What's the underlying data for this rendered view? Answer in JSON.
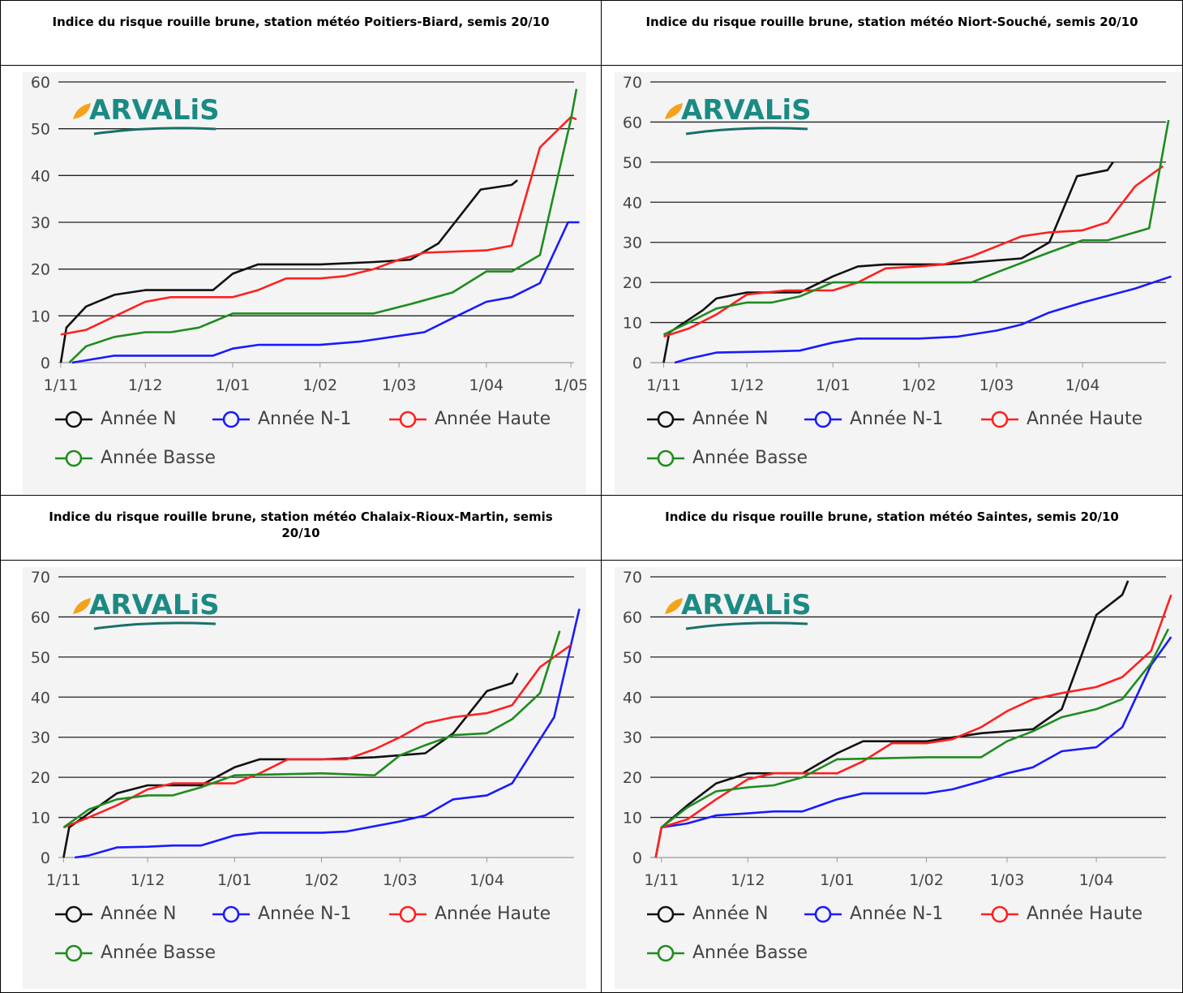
{
  "chart_data": [
    {
      "type": "line",
      "title": "Indice du risque rouille brune, station météo Poitiers-Biard, semis 20/10",
      "logo": "ARVALiS",
      "xlim": [
        "30/10",
        "5/05"
      ],
      "xticks": [
        "1/11",
        "1/12",
        "1/01",
        "1/02",
        "1/03",
        "1/04",
        "1/05"
      ],
      "ylim": [
        0,
        60
      ],
      "yticks": [
        0,
        10,
        20,
        30,
        40,
        50,
        60
      ],
      "grid": true,
      "series": [
        {
          "name": "Année N",
          "color": "#111111",
          "x": [
            "1/11",
            "3/11",
            "10/11",
            "20/11",
            "1/12",
            "25/12",
            "1/01",
            "10/01",
            "1/02",
            "20/02",
            "5/03",
            "15/03",
            "30/03",
            "10/04",
            "12/04"
          ],
          "values": [
            0,
            7.5,
            12,
            14.5,
            15.5,
            15.5,
            19,
            21,
            21,
            21.5,
            22,
            25.5,
            37,
            38,
            39
          ]
        },
        {
          "name": "Année N-1",
          "color": "#1a1aff",
          "x": [
            "5/11",
            "10/11",
            "20/11",
            "25/12",
            "1/01",
            "10/01",
            "1/02",
            "15/02",
            "10/03",
            "20/03",
            "1/04",
            "10/04",
            "20/04",
            "30/04",
            "4/05"
          ],
          "values": [
            0,
            0.5,
            1.5,
            1.5,
            3,
            3.8,
            3.8,
            4.5,
            6.5,
            9.5,
            13,
            14,
            17,
            30,
            30
          ]
        },
        {
          "name": "Année Haute",
          "color": "#ff2020",
          "x": [
            "1/11",
            "10/11",
            "1/12",
            "10/12",
            "1/01",
            "10/01",
            "20/01",
            "1/02",
            "10/02",
            "20/02",
            "1/03",
            "10/03",
            "1/04",
            "10/04",
            "20/04",
            "1/05",
            "3/05"
          ],
          "values": [
            6,
            7,
            13,
            14,
            14,
            15.5,
            18,
            18,
            18.5,
            20,
            22,
            23.5,
            24,
            25,
            46,
            52.5,
            52
          ]
        },
        {
          "name": "Année Basse",
          "color": "#1e8c1e",
          "x": [
            "4/11",
            "10/11",
            "20/11",
            "1/12",
            "10/12",
            "20/12",
            "1/01",
            "1/02",
            "20/02",
            "5/03",
            "20/03",
            "1/04",
            "10/04",
            "20/04",
            "1/05",
            "3/05"
          ],
          "values": [
            0,
            3.5,
            5.5,
            6.5,
            6.5,
            7.5,
            10.5,
            10.5,
            10.5,
            12.5,
            15,
            19.5,
            19.5,
            23,
            52,
            58.5
          ]
        }
      ]
    },
    {
      "type": "line",
      "title": "Indice du risque rouille brune, station météo Niort-Souché, semis 20/10",
      "logo": "ARVALiS",
      "xlim": [
        "26/10",
        "4/05"
      ],
      "xticks": [
        "1/11",
        "1/12",
        "1/01",
        "1/02",
        "1/03",
        "1/04"
      ],
      "ylim": [
        0,
        70
      ],
      "yticks": [
        0,
        10,
        20,
        30,
        40,
        50,
        60,
        70
      ],
      "grid": true,
      "series": [
        {
          "name": "Année N",
          "color": "#111111",
          "x": [
            "1/11",
            "3/11",
            "15/11",
            "20/11",
            "1/12",
            "20/12",
            "1/01",
            "10/01",
            "20/01",
            "1/02",
            "10/02",
            "20/02",
            "10/03",
            "20/03",
            "30/03",
            "10/04",
            "12/04"
          ],
          "values": [
            0,
            7.5,
            13,
            16,
            17.5,
            17.5,
            21.5,
            24,
            24.5,
            24.5,
            24.5,
            25,
            26,
            30,
            46.5,
            48,
            50
          ]
        },
        {
          "name": "Année N-1",
          "color": "#1a1aff",
          "x": [
            "5/11",
            "10/11",
            "20/11",
            "10/12",
            "20/12",
            "1/01",
            "10/01",
            "1/02",
            "15/02",
            "1/03",
            "10/03",
            "20/03",
            "1/04",
            "20/04",
            "3/05"
          ],
          "values": [
            0,
            1,
            2.5,
            2.8,
            3,
            5,
            6,
            6,
            6.5,
            8,
            9.5,
            12.5,
            15,
            18.5,
            21.5
          ]
        },
        {
          "name": "Année Haute",
          "color": "#ff2020",
          "x": [
            "1/11",
            "10/11",
            "20/11",
            "1/12",
            "15/12",
            "25/12",
            "1/01",
            "10/01",
            "20/01",
            "1/02",
            "10/02",
            "20/02",
            "1/03",
            "10/03",
            "20/03",
            "1/04",
            "10/04",
            "20/04",
            "30/04"
          ],
          "values": [
            6.5,
            8.5,
            12,
            17,
            18,
            18,
            18,
            20,
            23.5,
            24,
            24.5,
            26.5,
            29,
            31.5,
            32.5,
            33,
            35,
            44,
            49
          ]
        },
        {
          "name": "Année Basse",
          "color": "#1e8c1e",
          "x": [
            "1/11",
            "10/11",
            "20/11",
            "1/12",
            "10/12",
            "20/12",
            "1/01",
            "1/02",
            "20/02",
            "1/03",
            "20/03",
            "1/04",
            "10/04",
            "25/04",
            "2/05"
          ],
          "values": [
            7,
            10,
            13.5,
            15,
            15,
            16.5,
            20,
            20,
            20,
            22.5,
            27.5,
            30.5,
            30.5,
            33.5,
            60.5
          ]
        }
      ]
    },
    {
      "type": "line",
      "title": "Indice du risque rouille brune, station météo Chalaix-Rioux-Martin, semis 20/10",
      "logo": "ARVALiS",
      "xlim": [
        "29/10",
        "5/05"
      ],
      "xticks": [
        "1/11",
        "1/12",
        "1/01",
        "1/02",
        "1/03",
        "1/04"
      ],
      "ylim": [
        0,
        70
      ],
      "yticks": [
        0,
        10,
        20,
        30,
        40,
        50,
        60,
        70
      ],
      "grid": true,
      "series": [
        {
          "name": "Année N",
          "color": "#111111",
          "x": [
            "1/11",
            "3/11",
            "10/11",
            "20/11",
            "1/12",
            "20/12",
            "1/01",
            "10/01",
            "1/02",
            "20/02",
            "10/03",
            "20/03",
            "1/04",
            "10/04",
            "12/04"
          ],
          "values": [
            0,
            7.5,
            11,
            16,
            18,
            18,
            22.5,
            24.5,
            24.5,
            25,
            26,
            31,
            41.5,
            43.5,
            46
          ]
        },
        {
          "name": "Année N-1",
          "color": "#1a1aff",
          "x": [
            "5/11",
            "10/11",
            "20/11",
            "1/12",
            "10/12",
            "20/12",
            "1/01",
            "10/01",
            "1/02",
            "10/02",
            "1/03",
            "10/03",
            "20/03",
            "1/04",
            "10/04",
            "25/04",
            "4/05"
          ],
          "values": [
            0,
            0.5,
            2.5,
            2.7,
            3,
            3,
            5.5,
            6.2,
            6.2,
            6.5,
            9,
            10.5,
            14.5,
            15.5,
            18.5,
            35,
            62
          ]
        },
        {
          "name": "Année Haute",
          "color": "#ff2020",
          "x": [
            "1/11",
            "10/11",
            "20/11",
            "1/12",
            "10/12",
            "20/12",
            "1/01",
            "10/01",
            "20/01",
            "1/02",
            "10/02",
            "20/02",
            "1/03",
            "10/03",
            "20/03",
            "1/04",
            "10/04",
            "20/04",
            "1/05"
          ],
          "values": [
            7.5,
            10,
            13,
            17,
            18.5,
            18.5,
            18.5,
            21,
            24.5,
            24.5,
            24.5,
            27,
            30,
            33.5,
            35,
            36,
            38,
            47.5,
            53
          ]
        },
        {
          "name": "Année Basse",
          "color": "#1e8c1e",
          "x": [
            "1/11",
            "10/11",
            "20/11",
            "1/12",
            "10/12",
            "20/12",
            "1/01",
            "1/02",
            "20/02",
            "1/03",
            "10/03",
            "20/03",
            "1/04",
            "10/04",
            "20/04",
            "27/04"
          ],
          "values": [
            7.5,
            12,
            14.5,
            15.5,
            15.5,
            17.5,
            20.5,
            21,
            20.5,
            25.5,
            28,
            30.5,
            31,
            34.5,
            41,
            56.5
          ]
        }
      ]
    },
    {
      "type": "line",
      "title": "Indice du risque rouille brune, station météo Saintes, semis 20/10",
      "logo": "ARVALiS",
      "xlim": [
        "27/10",
        "28/04"
      ],
      "xticks": [
        "1/11",
        "1/12",
        "1/01",
        "1/02",
        "1/03",
        "1/04"
      ],
      "ylim": [
        0,
        70
      ],
      "yticks": [
        0,
        10,
        20,
        30,
        40,
        50,
        60,
        70
      ],
      "grid": true,
      "series": [
        {
          "name": "Année N",
          "color": "#111111",
          "x": [
            "30/10",
            "1/11",
            "10/11",
            "20/11",
            "1/12",
            "20/12",
            "1/01",
            "10/01",
            "1/02",
            "20/02",
            "10/03",
            "20/03",
            "1/04",
            "10/04",
            "12/04"
          ],
          "values": [
            0,
            7.5,
            13,
            18.5,
            21,
            21,
            26,
            29,
            29,
            31,
            32,
            37,
            60.5,
            65.5,
            69
          ]
        },
        {
          "name": "Année N-1",
          "color": "#1a1aff",
          "x": [
            "1/11",
            "10/11",
            "20/11",
            "1/12",
            "10/12",
            "20/12",
            "1/01",
            "10/01",
            "1/02",
            "10/02",
            "20/02",
            "1/03",
            "10/03",
            "20/03",
            "1/04",
            "10/04",
            "20/04",
            "27/04"
          ],
          "values": [
            7.5,
            8.5,
            10.5,
            11,
            11.5,
            11.5,
            14.5,
            16,
            16,
            17,
            19,
            21,
            22.5,
            26.5,
            27.5,
            32.5,
            48,
            55
          ]
        },
        {
          "name": "Année Haute",
          "color": "#ff2020",
          "x": [
            "30/10",
            "1/11",
            "10/11",
            "20/11",
            "1/12",
            "10/12",
            "20/12",
            "1/01",
            "10/01",
            "20/01",
            "1/02",
            "10/02",
            "20/02",
            "1/03",
            "10/03",
            "20/03",
            "1/04",
            "10/04",
            "20/04",
            "27/04"
          ],
          "values": [
            0,
            7.5,
            9.5,
            14.5,
            19.5,
            21,
            21,
            21,
            24,
            28.5,
            28.5,
            29.5,
            32.5,
            36.5,
            39.5,
            41,
            42.5,
            45,
            51.5,
            65.5
          ]
        },
        {
          "name": "Année Basse",
          "color": "#1e8c1e",
          "x": [
            "1/11",
            "10/11",
            "20/11",
            "1/12",
            "10/12",
            "20/12",
            "1/01",
            "1/02",
            "20/02",
            "1/03",
            "10/03",
            "20/03",
            "1/04",
            "10/04",
            "20/04",
            "26/04"
          ],
          "values": [
            7.5,
            12.5,
            16.5,
            17.5,
            18,
            20,
            24.5,
            25,
            25,
            29,
            31.5,
            35,
            37,
            39.5,
            48.5,
            57
          ]
        }
      ]
    }
  ]
}
